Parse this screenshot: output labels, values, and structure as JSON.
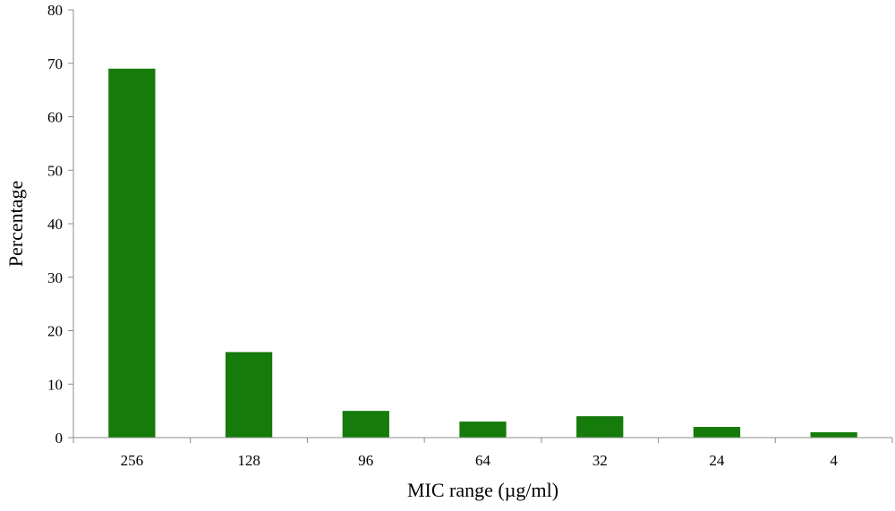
{
  "chart_data": {
    "type": "bar",
    "title": "",
    "xlabel": "MIC range (µg/ml)",
    "ylabel": "Percentage",
    "categories": [
      "256",
      "128",
      "96",
      "64",
      "32",
      "24",
      "4"
    ],
    "values": [
      69,
      16,
      5,
      3,
      4,
      2,
      1
    ],
    "ylim": [
      0,
      80
    ],
    "yticks": [
      "0",
      "10",
      "20",
      "30",
      "40",
      "50",
      "60",
      "70",
      "80"
    ],
    "grid": false,
    "legend": "none",
    "bar_color": "#157c0b",
    "axis_color": "#8c8c8c"
  }
}
